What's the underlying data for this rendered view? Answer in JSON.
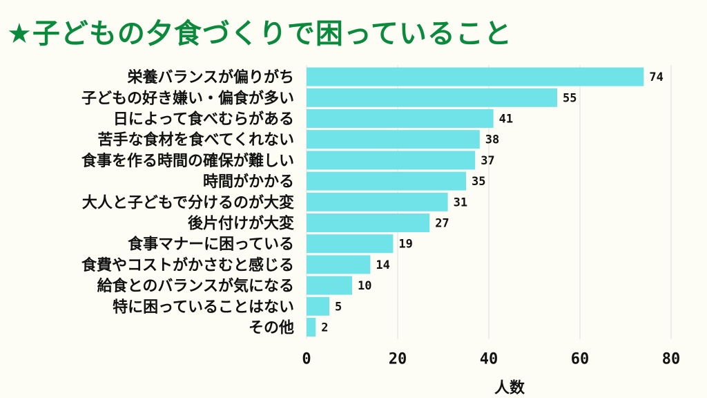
{
  "title": "★子どもの夕食づくりで困っていること",
  "chart_data": {
    "type": "bar",
    "orientation": "horizontal",
    "categories": [
      "栄養バランスが偏りがち",
      "子どもの好き嫌い・偏食が多い",
      "日によって食べむらがある",
      "苦手な食材を食べてくれない",
      "食事を作る時間の確保が難しい",
      "時間がかかる",
      "大人と子どもで分けるのが大変",
      "後片付けが大変",
      "食事マナーに困っている",
      "食費やコストがかさむと感じる",
      "給食とのバランスが気になる",
      "特に困っていることはない",
      "その他"
    ],
    "values": [
      74,
      55,
      41,
      38,
      37,
      35,
      31,
      27,
      19,
      14,
      10,
      5,
      2
    ],
    "xlabel": "人数",
    "ylabel": "",
    "xlim": [
      0,
      80
    ],
    "xticks": [
      0,
      20,
      40,
      60,
      80
    ],
    "grid": true,
    "bar_color": "#6fe3e8"
  }
}
